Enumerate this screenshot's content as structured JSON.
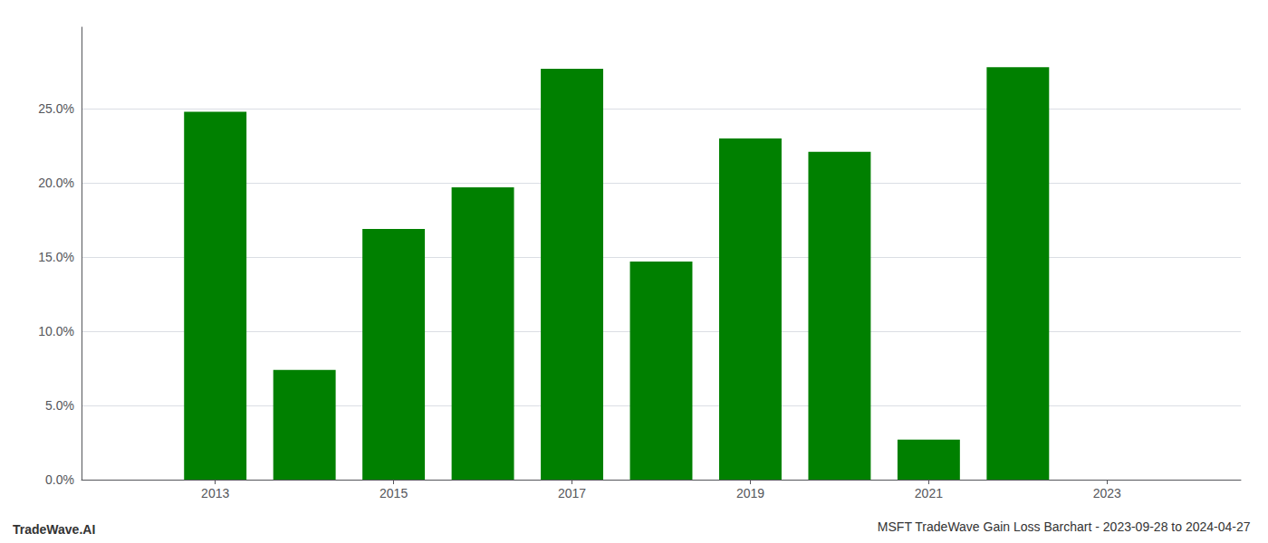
{
  "chart_data": {
    "type": "bar",
    "title": "MSFT TradeWave Gain Loss Barchart - 2023-09-28 to 2024-04-27",
    "annotations": [
      "TradeWave.AI"
    ],
    "x": [
      2013,
      2014,
      2015,
      2016,
      2017,
      2018,
      2019,
      2020,
      2021,
      2022,
      2023
    ],
    "values": [
      0.248,
      0.074,
      0.169,
      0.197,
      0.277,
      0.147,
      0.23,
      0.221,
      0.027,
      0.278,
      null
    ],
    "color": "#008000",
    "xlim": [
      2011.5,
      2024.5
    ],
    "xticks": [
      2013,
      2015,
      2017,
      2019,
      2021,
      2023
    ],
    "ylim": [
      0,
      0.305
    ],
    "yticks": [
      {
        "value": 0.0,
        "label": "0.0%"
      },
      {
        "value": 0.05,
        "label": "5.0%"
      },
      {
        "value": 0.1,
        "label": "10.0%"
      },
      {
        "value": 0.15,
        "label": "15.0%"
      },
      {
        "value": 0.2,
        "label": "20.0%"
      },
      {
        "value": 0.25,
        "label": "25.0%"
      }
    ],
    "grid": true
  }
}
